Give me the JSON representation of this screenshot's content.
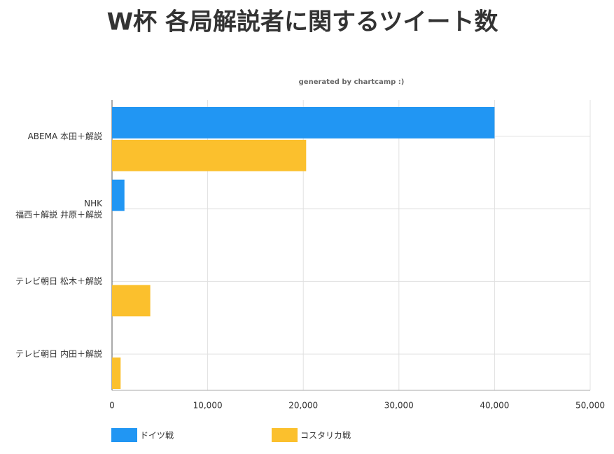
{
  "chart_data": {
    "type": "hbar",
    "title": "W杯 各局解説者に関するツイート数",
    "subtitle": "generated by chartcamp :)",
    "categories": [
      "ABEMA 本田＋解説",
      "NHK\n福西＋解説 井原＋解説",
      "テレビ朝日 松木＋解説",
      "テレビ朝日 内田＋解説"
    ],
    "series": [
      {
        "name": "ドイツ戦",
        "color": "#2196f3",
        "values": [
          40000,
          1300,
          null,
          null
        ]
      },
      {
        "name": "コスタリカ戦",
        "color": "#fbc02d",
        "values": [
          20300,
          null,
          4000,
          900
        ]
      }
    ],
    "xlim": [
      0,
      50000
    ],
    "xticks": [
      0,
      {
        "value": 10000,
        "label": "10,000"
      },
      {
        "value": 20000,
        "label": "20,000"
      },
      {
        "value": 30000,
        "label": "30,000"
      },
      {
        "value": 40000,
        "label": "40,000"
      },
      {
        "value": 50000,
        "label": "50,000"
      }
    ],
    "grid": true
  }
}
